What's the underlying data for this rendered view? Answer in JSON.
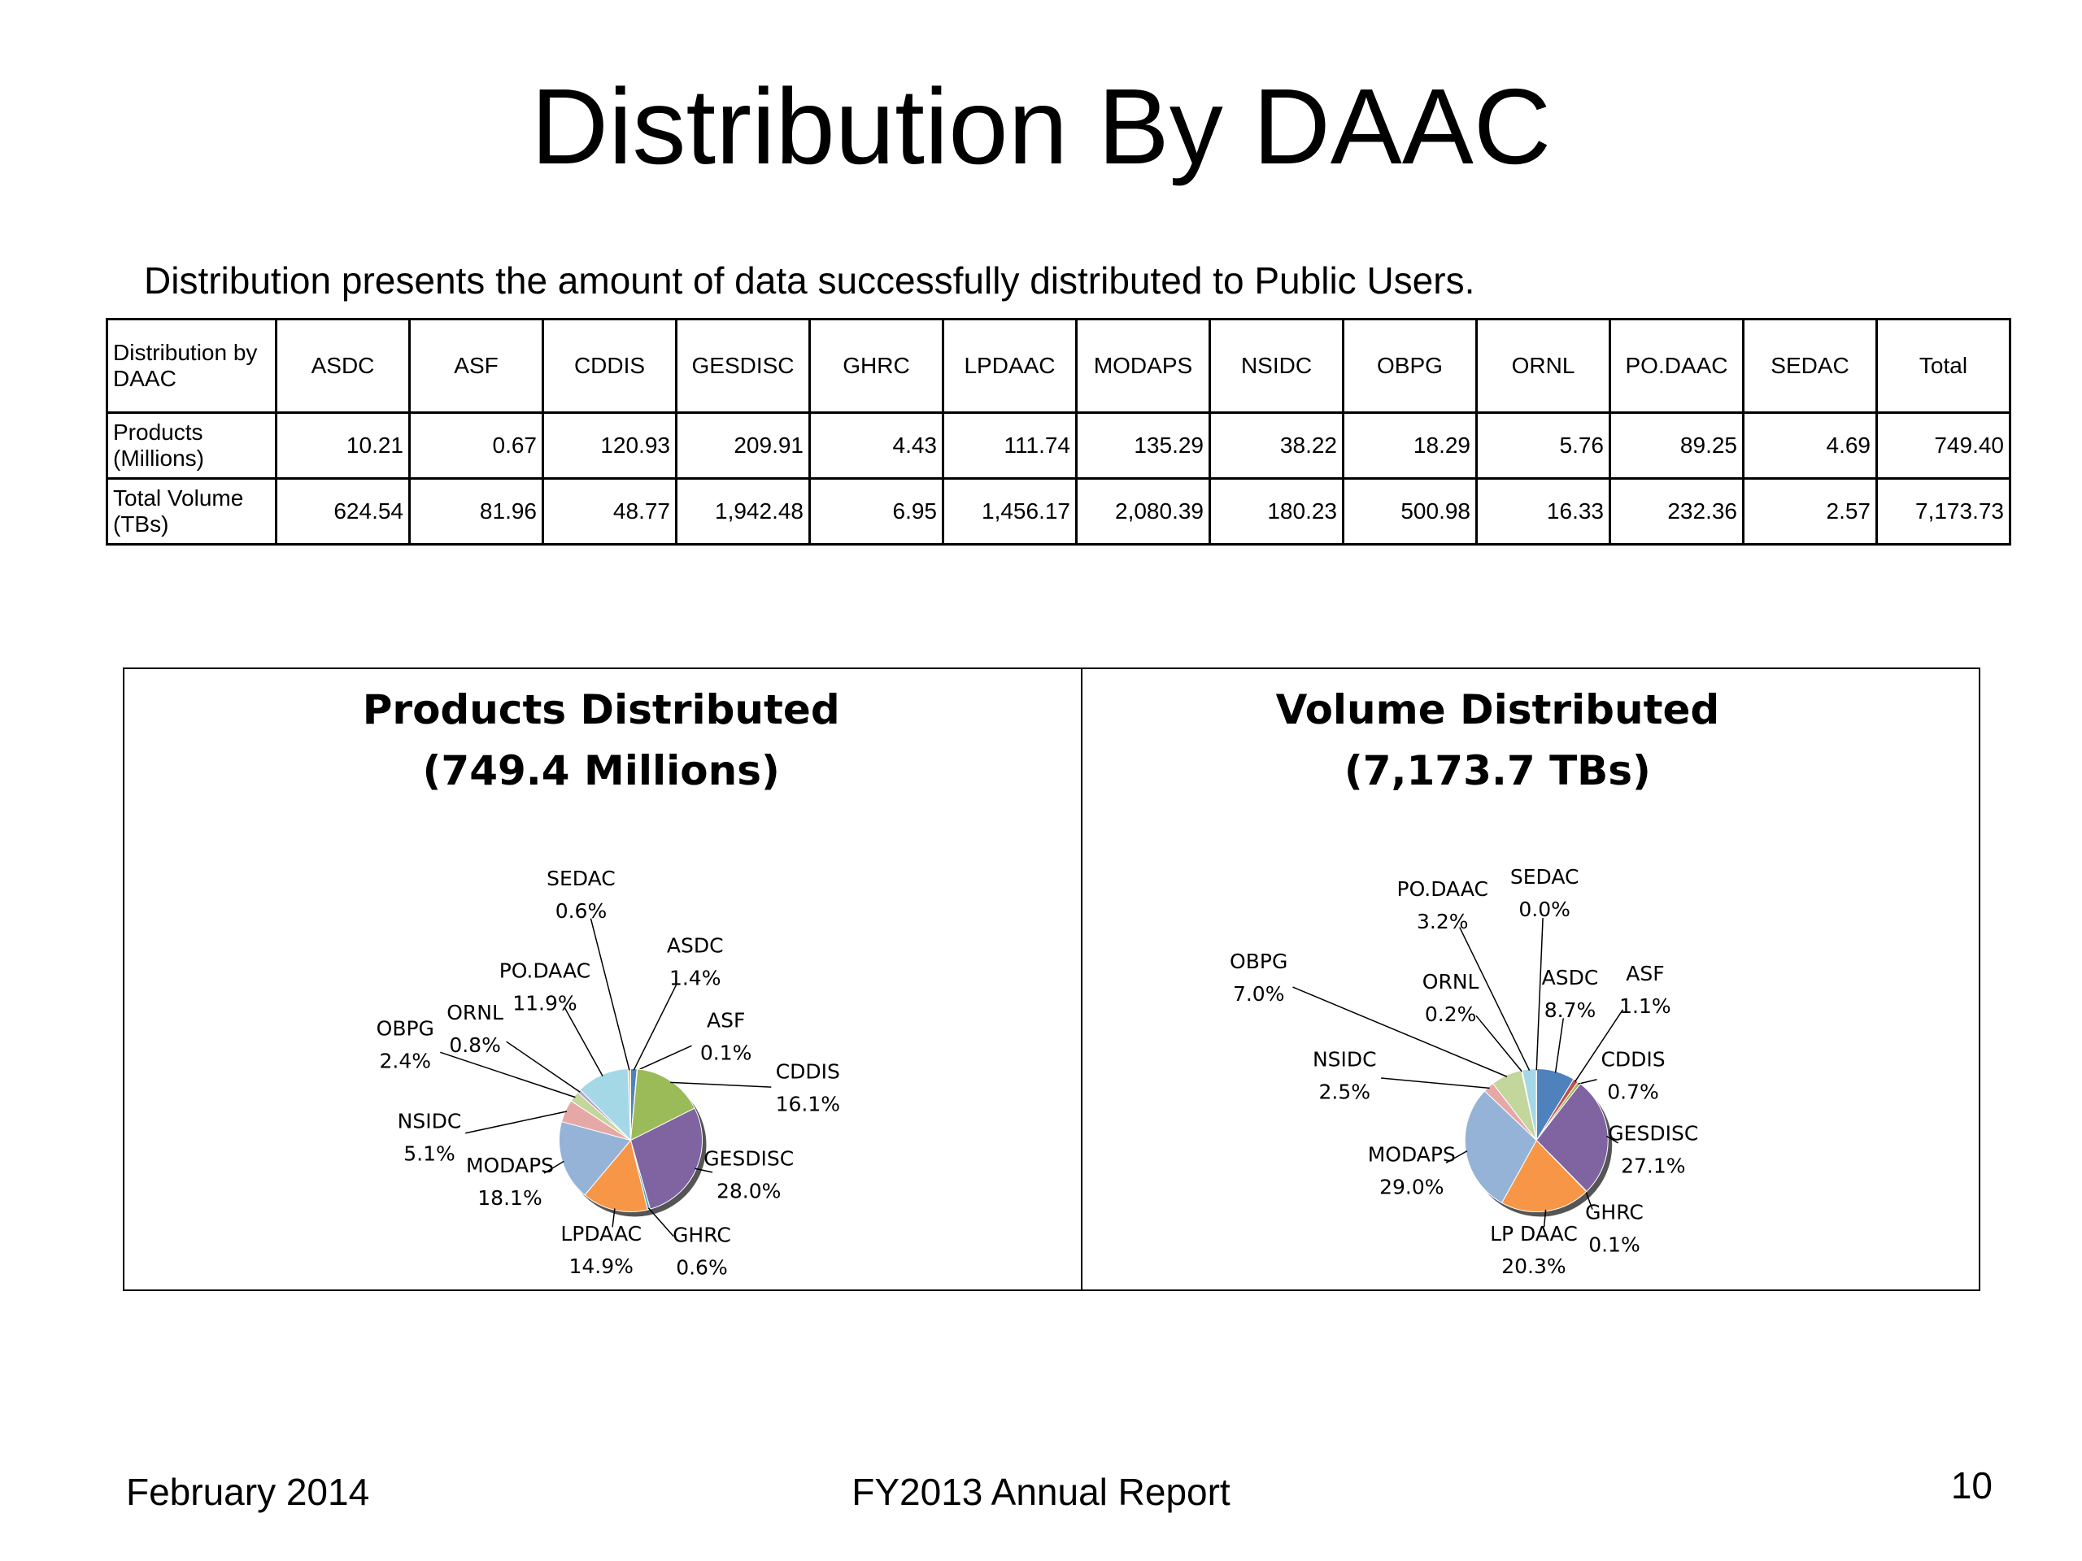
{
  "title": "Distribution By DAAC",
  "subtitle": "Distribution presents the amount of data successfully distributed to Public Users.",
  "table": {
    "header": [
      "Distribution by DAAC",
      "ASDC",
      "ASF",
      "CDDIS",
      "GESDISC",
      "GHRC",
      "LPDAAC",
      "MODAPS",
      "NSIDC",
      "OBPG",
      "ORNL",
      "PO.DAAC",
      "SEDAC",
      "Total"
    ],
    "rows": [
      [
        "Products (Millions)",
        "10.21",
        "0.67",
        "120.93",
        "209.91",
        "4.43",
        "111.74",
        "135.29",
        "38.22",
        "18.29",
        "5.76",
        "89.25",
        "4.69",
        "749.40"
      ],
      [
        "Total Volume (TBs)",
        "624.54",
        "81.96",
        "48.77",
        "1,942.48",
        "6.95",
        "1,456.17",
        "2,080.39",
        "180.23",
        "500.98",
        "16.33",
        "232.36",
        "2.57",
        "7,173.73"
      ]
    ]
  },
  "chart_data": [
    {
      "type": "pie",
      "title": "Products Distributed",
      "subtitle": "(749.4 Millions)",
      "categories": [
        "ASDC",
        "ASF",
        "CDDIS",
        "GESDISC",
        "GHRC",
        "LPDAAC",
        "MODAPS",
        "NSIDC",
        "OBPG",
        "ORNL",
        "PO.DAAC",
        "SEDAC"
      ],
      "values": [
        1.4,
        0.1,
        16.1,
        28.0,
        0.6,
        14.9,
        18.1,
        5.1,
        2.4,
        0.8,
        11.9,
        0.6
      ],
      "value_labels": [
        "1.4%",
        "0.1%",
        "16.1%",
        "28.0%",
        "0.6%",
        "14.9%",
        "18.1%",
        "5.1%",
        "2.4%",
        "0.8%",
        "11.9%",
        "0.6%"
      ],
      "colors": [
        "#4f81bd",
        "#c0504d",
        "#9bbb59",
        "#8064a2",
        "#4bacc6",
        "#f79646",
        "#95b3d7",
        "#e6a8a7",
        "#c3d69b",
        "#b3a2c7",
        "#a5d8e6",
        "#fac090"
      ]
    },
    {
      "type": "pie",
      "title": "Volume Distributed",
      "subtitle": "(7,173.7 TBs)",
      "categories": [
        "ASDC",
        "ASF",
        "CDDIS",
        "GESDISC",
        "GHRC",
        "LP DAAC",
        "MODAPS",
        "NSIDC",
        "OBPG",
        "ORNL",
        "PO.DAAC",
        "SEDAC"
      ],
      "values": [
        8.7,
        1.1,
        0.7,
        27.1,
        0.1,
        20.3,
        29.0,
        2.5,
        7.0,
        0.2,
        3.2,
        0.0
      ],
      "value_labels": [
        "8.7%",
        "1.1%",
        "0.7%",
        "27.1%",
        "0.1%",
        "20.3%",
        "29.0%",
        "2.5%",
        "7.0%",
        "0.2%",
        "3.2%",
        "0.0%"
      ],
      "colors": [
        "#4f81bd",
        "#c0504d",
        "#9bbb59",
        "#8064a2",
        "#4bacc6",
        "#f79646",
        "#95b3d7",
        "#e6a8a7",
        "#c3d69b",
        "#b3a2c7",
        "#a5d8e6",
        "#fac090"
      ]
    }
  ],
  "footer": {
    "date": "February 2014",
    "report": "FY2013 Annual Report",
    "page": "10"
  }
}
